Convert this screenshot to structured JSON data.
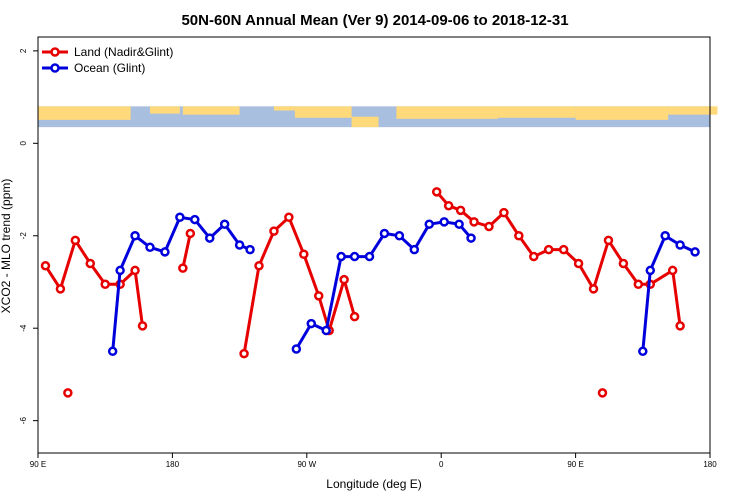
{
  "chart_data": {
    "type": "line",
    "title": "50N-60N Annual Mean (Ver 9)   2014-09-06 to 2018-12-31",
    "xlabel": "Longitude (deg E)",
    "ylabel": "XCO2 - MLO trend (ppm)",
    "xlim": [
      90,
      540
    ],
    "ylim": [
      -6.7,
      2.3
    ],
    "x_ticks": [
      {
        "value": 90,
        "label": "90 E"
      },
      {
        "value": 180,
        "label": "180"
      },
      {
        "value": 270,
        "label": "90 W"
      },
      {
        "value": 360,
        "label": "0"
      },
      {
        "value": 450,
        "label": "90 E"
      },
      {
        "value": 540,
        "label": "180"
      }
    ],
    "y_ticks": [
      {
        "value": 2,
        "label": "2"
      },
      {
        "value": 0,
        "label": "0"
      },
      {
        "value": -2,
        "label": "-2"
      },
      {
        "value": -4,
        "label": "-4"
      },
      {
        "value": -6,
        "label": "-6"
      }
    ],
    "grid": false,
    "legend_position": "top-left",
    "map_strip": {
      "y_top": 0.8,
      "y_bottom": 0.35,
      "land_color": "#ffd97a",
      "ocean_color": "#a8bfe0"
    },
    "series": [
      {
        "name": "Land (Nadir&Glint)",
        "color": "#e60000",
        "segments": [
          [
            [
              95,
              -2.65
            ],
            [
              105,
              -3.15
            ],
            [
              115,
              -2.1
            ],
            [
              125,
              -2.6
            ],
            [
              135,
              -3.05
            ],
            [
              145,
              -3.05
            ],
            [
              155,
              -2.75
            ],
            [
              160,
              -3.95
            ]
          ],
          [
            [
              110,
              -5.4
            ]
          ],
          [
            [
              187,
              -2.7
            ],
            [
              192,
              -1.95
            ]
          ],
          [
            [
              228,
              -4.55
            ],
            [
              238,
              -2.65
            ],
            [
              248,
              -1.9
            ],
            [
              258,
              -1.6
            ],
            [
              268,
              -2.4
            ],
            [
              278,
              -3.3
            ],
            [
              285,
              -4.05
            ],
            [
              295,
              -2.95
            ],
            [
              302,
              -3.75
            ]
          ],
          [
            [
              357,
              -1.05
            ],
            [
              365,
              -1.35
            ],
            [
              373,
              -1.45
            ],
            [
              382,
              -1.7
            ],
            [
              392,
              -1.8
            ],
            [
              402,
              -1.5
            ],
            [
              412,
              -2.0
            ],
            [
              422,
              -2.45
            ],
            [
              432,
              -2.3
            ],
            [
              442,
              -2.3
            ],
            [
              452,
              -2.6
            ],
            [
              462,
              -3.15
            ],
            [
              472,
              -2.1
            ],
            [
              482,
              -2.6
            ],
            [
              492,
              -3.05
            ],
            [
              500,
              -3.05
            ],
            [
              515,
              -2.75
            ],
            [
              520,
              -3.95
            ]
          ],
          [
            [
              468,
              -5.4
            ]
          ]
        ]
      },
      {
        "name": "Ocean (Glint)",
        "color": "#0000dd",
        "segments": [
          [
            [
              140,
              -4.5
            ],
            [
              145,
              -2.75
            ],
            [
              155,
              -2.0
            ],
            [
              165,
              -2.25
            ],
            [
              175,
              -2.35
            ],
            [
              185,
              -1.6
            ],
            [
              195,
              -1.65
            ],
            [
              205,
              -2.05
            ],
            [
              215,
              -1.75
            ],
            [
              225,
              -2.2
            ],
            [
              232,
              -2.3
            ]
          ],
          [
            [
              263,
              -4.45
            ],
            [
              273,
              -3.9
            ],
            [
              283,
              -4.05
            ],
            [
              293,
              -2.45
            ],
            [
              302,
              -2.45
            ],
            [
              312,
              -2.45
            ],
            [
              322,
              -1.95
            ],
            [
              332,
              -2.0
            ],
            [
              342,
              -2.3
            ],
            [
              352,
              -1.75
            ],
            [
              362,
              -1.7
            ],
            [
              372,
              -1.75
            ],
            [
              380,
              -2.05
            ]
          ],
          [
            [
              495,
              -4.5
            ],
            [
              500,
              -2.75
            ],
            [
              510,
              -2.0
            ],
            [
              520,
              -2.2
            ],
            [
              530,
              -2.35
            ]
          ]
        ]
      }
    ]
  }
}
